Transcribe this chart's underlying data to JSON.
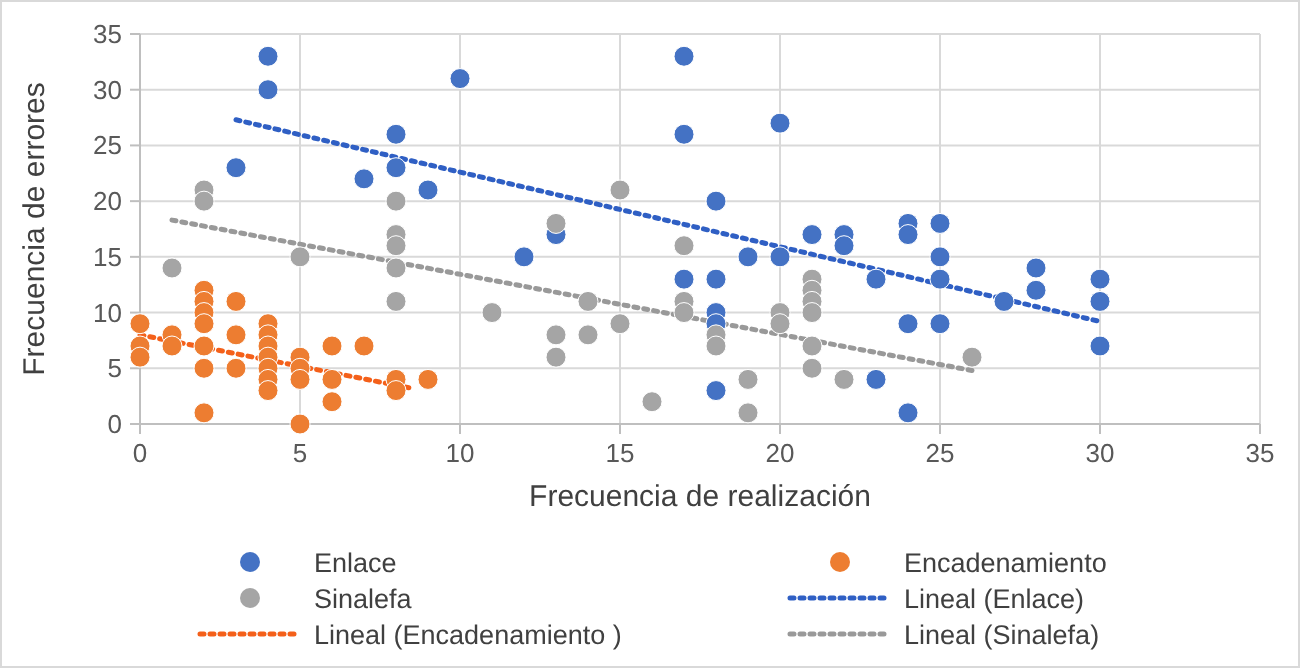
{
  "chart_data": {
    "type": "scatter",
    "xlabel": "Frecuencia de realización",
    "ylabel": "Frecuencia de errores",
    "xlim": [
      0,
      35
    ],
    "ylim": [
      0,
      35
    ],
    "xticks": [
      0,
      5,
      10,
      15,
      20,
      25,
      30,
      35
    ],
    "yticks": [
      0,
      5,
      10,
      15,
      20,
      25,
      30,
      35
    ],
    "grid": true,
    "legend": "bottom",
    "marker": "circle",
    "series": [
      {
        "name": "Enlace",
        "color": "#4472c4",
        "x": [
          3,
          4,
          4,
          8,
          7,
          8,
          9,
          10,
          12,
          13,
          17,
          17,
          18,
          17,
          18,
          18,
          18,
          19,
          20,
          20,
          21,
          22,
          22,
          23,
          18,
          23,
          24,
          24,
          25,
          25,
          25,
          24,
          25,
          24,
          27,
          28,
          28,
          30,
          30,
          30
        ],
        "values": [
          23,
          33,
          30,
          26,
          22,
          23,
          21,
          31,
          15,
          17,
          33,
          26,
          20,
          13,
          13,
          10,
          9,
          15,
          15,
          27,
          17,
          17,
          16,
          13,
          3,
          4,
          18,
          17,
          18,
          15,
          13,
          9,
          9,
          1,
          11,
          14,
          12,
          13,
          11,
          7
        ]
      },
      {
        "name": "Encadenamiento",
        "color": "#ed7d31",
        "x": [
          0,
          0,
          0,
          1,
          1,
          2,
          2,
          2,
          2,
          2,
          2,
          2,
          3,
          3,
          3,
          4,
          4,
          4,
          4,
          4,
          4,
          4,
          5,
          5,
          5,
          5,
          6,
          6,
          6,
          7,
          8,
          8,
          9
        ],
        "values": [
          9,
          7,
          6,
          8,
          7,
          12,
          11,
          10,
          9,
          7,
          5,
          1,
          11,
          8,
          5,
          9,
          8,
          7,
          6,
          5,
          4,
          3,
          6,
          5,
          4,
          0,
          7,
          4,
          2,
          7,
          4,
          3,
          4
        ]
      },
      {
        "name": "Sinalefa",
        "color": "#a5a5a5",
        "x": [
          1,
          2,
          2,
          5,
          8,
          8,
          8,
          8,
          8,
          11,
          13,
          13,
          13,
          14,
          14,
          15,
          15,
          16,
          17,
          17,
          17,
          18,
          18,
          19,
          19,
          20,
          20,
          21,
          21,
          21,
          21,
          21,
          21,
          22,
          26
        ],
        "values": [
          14,
          21,
          20,
          15,
          20,
          17,
          16,
          14,
          11,
          10,
          18,
          8,
          6,
          11,
          8,
          21,
          9,
          2,
          16,
          11,
          10,
          8,
          7,
          4,
          1,
          10,
          9,
          13,
          12,
          11,
          10,
          7,
          5,
          4,
          6
        ]
      },
      {
        "name": "Lineal (Enlace)",
        "type": "line",
        "marker": "none",
        "line_style": "dotted",
        "color": "#2f5fc4",
        "x": [
          3,
          30
        ],
        "values": [
          27.3,
          9.2
        ]
      },
      {
        "name": "Lineal (Encadenamiento )",
        "type": "line",
        "marker": "none",
        "line_style": "dotted",
        "color": "#f4601a",
        "x": [
          0,
          8.5
        ],
        "values": [
          8,
          3.2
        ]
      },
      {
        "name": "Lineal (Sinalefa)",
        "type": "line",
        "marker": "none",
        "line_style": "dotted",
        "color": "#999999",
        "x": [
          1,
          26
        ],
        "values": [
          18.3,
          4.8
        ]
      }
    ]
  }
}
